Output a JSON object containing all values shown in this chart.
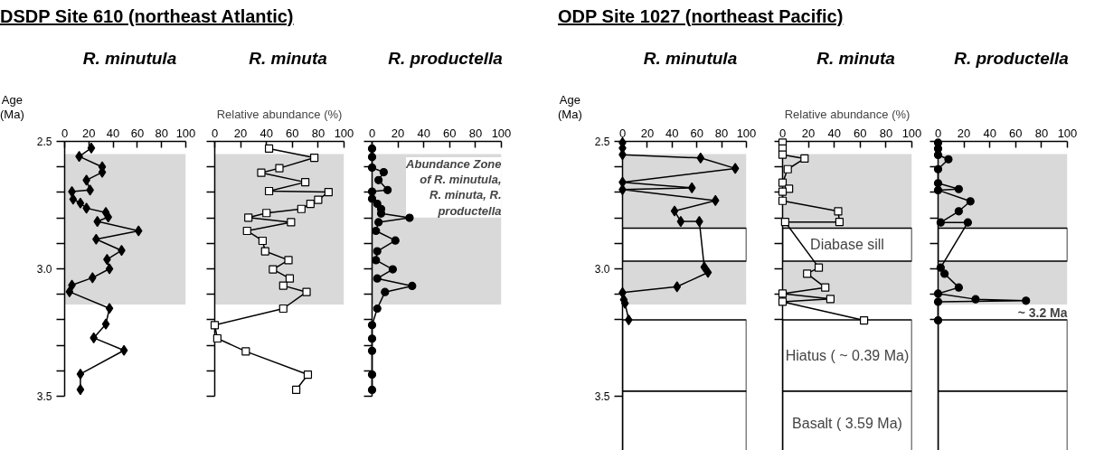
{
  "chart_data": [
    {
      "type": "line",
      "title": "R. minutula",
      "ylabel": "Age (Ma)",
      "annotations": [
        "DSDP Site 610 (northeast Atlantic)"
      ],
      "xlim": [
        0,
        100
      ],
      "xticks": [
        0,
        20,
        40,
        60,
        80,
        100
      ],
      "ylim": [
        3.5,
        2.5
      ],
      "yticks": [
        {
          "value": 2.5,
          "label": "2.5"
        },
        {
          "value": 2.6,
          "label": null
        },
        {
          "value": 2.7,
          "label": null
        },
        {
          "value": 2.8,
          "label": null
        },
        {
          "value": 2.9,
          "label": null
        },
        {
          "value": 3.0,
          "label": "3.0"
        },
        {
          "value": 3.1,
          "label": null
        },
        {
          "value": 3.2,
          "label": null
        },
        {
          "value": 3.3,
          "label": null
        },
        {
          "value": 3.4,
          "label": null
        },
        {
          "value": 3.5,
          "label": "3.5"
        }
      ],
      "marker": "diamond",
      "bands": [
        {
          "axis": "y",
          "from": 2.55,
          "to": 3.14,
          "color": "#d9d9d9"
        }
      ],
      "series": [
        {
          "color": "#000000",
          "x": [
            22,
            12,
            31,
            31,
            18,
            21,
            6,
            7,
            13,
            18,
            34,
            36,
            27,
            61,
            26,
            47,
            35,
            37,
            23,
            6,
            4,
            37,
            34,
            24,
            49,
            13,
            13
          ],
          "values": [
            2.526,
            2.559,
            2.6,
            2.621,
            2.652,
            2.691,
            2.697,
            2.727,
            2.742,
            2.762,
            2.779,
            2.797,
            2.814,
            2.851,
            2.884,
            2.928,
            2.963,
            3.0,
            3.035,
            3.064,
            3.09,
            3.155,
            3.217,
            3.271,
            3.32,
            3.413,
            3.474
          ]
        }
      ]
    },
    {
      "type": "line",
      "title": "R. minuta",
      "xlabel": "Relative abundance (%)",
      "tick_labels": "x",
      "xlim": [
        0,
        100
      ],
      "xticks": [
        0,
        20,
        40,
        60,
        80,
        100
      ],
      "ylim": [
        3.5,
        2.5
      ],
      "yticks": [
        {
          "value": 2.5,
          "label": null
        },
        {
          "value": 2.6,
          "label": null
        },
        {
          "value": 2.7,
          "label": null
        },
        {
          "value": 2.8,
          "label": null
        },
        {
          "value": 2.9,
          "label": null
        },
        {
          "value": 3.0,
          "label": null
        },
        {
          "value": 3.1,
          "label": null
        },
        {
          "value": 3.2,
          "label": null
        },
        {
          "value": 3.3,
          "label": null
        },
        {
          "value": 3.4,
          "label": null
        },
        {
          "value": 3.5,
          "label": null
        }
      ],
      "marker": "square",
      "bands": [
        {
          "axis": "y",
          "from": 2.55,
          "to": 3.14,
          "color": "#d9d9d9"
        }
      ],
      "series": [
        {
          "color": "#000000",
          "x": [
            42,
            77,
            50,
            36,
            70,
            42,
            88,
            80,
            74,
            67,
            40,
            26,
            59,
            25,
            37,
            39,
            57,
            45,
            58,
            53,
            71,
            53,
            0,
            2,
            24,
            72,
            63
          ],
          "values": [
            2.528,
            2.564,
            2.605,
            2.623,
            2.66,
            2.695,
            2.699,
            2.729,
            2.745,
            2.765,
            2.781,
            2.799,
            2.817,
            2.851,
            2.89,
            2.931,
            2.966,
            3.002,
            3.038,
            3.066,
            3.091,
            3.156,
            3.221,
            3.273,
            3.324,
            3.415,
            3.475
          ]
        }
      ]
    },
    {
      "type": "line",
      "title": "R. productella",
      "tick_labels": "x",
      "xlim": [
        0,
        100
      ],
      "xticks": [
        0,
        20,
        40,
        60,
        80,
        100
      ],
      "ylim": [
        3.5,
        2.5
      ],
      "yticks": [
        {
          "value": 2.5,
          "label": null
        },
        {
          "value": 2.6,
          "label": null
        },
        {
          "value": 2.7,
          "label": null
        },
        {
          "value": 2.8,
          "label": null
        },
        {
          "value": 2.9,
          "label": null
        },
        {
          "value": 3.0,
          "label": null
        },
        {
          "value": 3.1,
          "label": null
        },
        {
          "value": 3.2,
          "label": null
        },
        {
          "value": 3.3,
          "label": null
        },
        {
          "value": 3.4,
          "label": null
        },
        {
          "value": 3.5,
          "label": null
        }
      ],
      "marker": "circle",
      "bands": [
        {
          "axis": "y",
          "from": 2.55,
          "to": 3.14,
          "color": "#d9d9d9",
          "label": "Abundance Zone of R. minutula, R. minuta, R. productella"
        }
      ],
      "series": [
        {
          "color": "#000000",
          "x": [
            0,
            0,
            0,
            9,
            5,
            12,
            0,
            0,
            4,
            7,
            7,
            29,
            5,
            3,
            18,
            4,
            3,
            16,
            4,
            31,
            10,
            4,
            0,
            0,
            0,
            0,
            0
          ],
          "values": [
            2.528,
            2.561,
            2.603,
            2.621,
            2.652,
            2.691,
            2.697,
            2.725,
            2.745,
            2.765,
            2.783,
            2.8,
            2.817,
            2.851,
            2.889,
            2.931,
            2.966,
            3.002,
            3.038,
            3.067,
            3.091,
            3.156,
            3.221,
            3.274,
            3.322,
            3.415,
            3.475
          ]
        }
      ]
    },
    {
      "type": "line",
      "title": "R. minutula",
      "ylabel": "Age (Ma)",
      "annotations": [
        "ODP Site 1027 (northeast Pacific)"
      ],
      "xlim": [
        0,
        100
      ],
      "xticks": [
        0,
        20,
        40,
        60,
        80,
        100
      ],
      "ylim": [
        3.73,
        2.5
      ],
      "yticks": [
        {
          "value": 2.5,
          "label": "2.5"
        },
        {
          "value": 2.6,
          "label": null
        },
        {
          "value": 2.7,
          "label": null
        },
        {
          "value": 2.8,
          "label": null
        },
        {
          "value": 2.9,
          "label": null
        },
        {
          "value": 3.0,
          "label": "3.0"
        },
        {
          "value": 3.1,
          "label": null
        },
        {
          "value": 3.2,
          "label": null
        },
        {
          "value": 3.5,
          "label": "3.5"
        }
      ],
      "marker": "diamond",
      "bands": [
        {
          "axis": "y",
          "from": 2.55,
          "to": 3.14,
          "color": "#d9d9d9"
        },
        {
          "axis": "y",
          "from": 2.84,
          "to": 2.97,
          "color": "#ffffff"
        },
        {
          "axis": "y",
          "from": 3.2,
          "to": 3.48,
          "color": "#ffffff"
        },
        {
          "axis": "y",
          "from": 3.48,
          "to": 3.73,
          "color": "#ffffff"
        }
      ],
      "series": [
        {
          "color": "#000000",
          "x": [
            0,
            0,
            0,
            63,
            91,
            0,
            56,
            0,
            75,
            42,
            47,
            62,
            66,
            69,
            44,
            0,
            1,
            2,
            5
          ],
          "values": [
            2.505,
            2.526,
            2.552,
            2.565,
            2.606,
            2.66,
            2.682,
            2.689,
            2.732,
            2.773,
            2.814,
            2.814,
            2.993,
            3.014,
            3.07,
            3.093,
            3.121,
            3.135,
            3.2
          ]
        }
      ]
    },
    {
      "type": "line",
      "title": "R. minuta",
      "xlabel": "Relative abundance (%)",
      "tick_labels": "x",
      "xlim": [
        0,
        100
      ],
      "xticks": [
        0,
        20,
        40,
        60,
        80,
        100
      ],
      "ylim": [
        3.73,
        2.5
      ],
      "yticks": [
        {
          "value": 2.5,
          "label": null
        },
        {
          "value": 2.6,
          "label": null
        },
        {
          "value": 2.7,
          "label": null
        },
        {
          "value": 2.8,
          "label": null
        },
        {
          "value": 2.9,
          "label": null
        },
        {
          "value": 3.0,
          "label": null
        },
        {
          "value": 3.1,
          "label": null
        },
        {
          "value": 3.2,
          "label": null
        }
      ],
      "marker": "square",
      "bands": [
        {
          "axis": "y",
          "from": 2.55,
          "to": 3.14,
          "color": "#d9d9d9"
        },
        {
          "axis": "y",
          "from": 2.84,
          "to": 2.97,
          "color": "#ffffff",
          "label": "Diabase sill"
        },
        {
          "axis": "y",
          "from": 3.2,
          "to": 3.48,
          "color": "#ffffff",
          "label": "Hiatus ( ~ 0.39 Ma)"
        },
        {
          "axis": "y",
          "from": 3.48,
          "to": 3.73,
          "color": "#ffffff",
          "label": "Basalt ( 3.59 Ma)"
        }
      ],
      "series": [
        {
          "color": "#000000",
          "x": [
            0,
            0,
            0,
            17,
            4,
            0,
            5,
            0,
            0,
            43,
            44,
            2,
            28,
            19,
            33,
            0,
            37,
            0,
            63
          ],
          "values": [
            2.505,
            2.528,
            2.552,
            2.567,
            2.609,
            2.662,
            2.686,
            2.697,
            2.733,
            2.774,
            2.816,
            2.816,
            2.995,
            3.019,
            3.073,
            3.097,
            3.118,
            3.129,
            3.202
          ]
        }
      ]
    },
    {
      "type": "line",
      "title": "R. productella",
      "tick_labels": "x",
      "annotations": [
        {
          "text": "~ 3.2 Ma",
          "x": 100,
          "y": 3.2
        }
      ],
      "xlim": [
        0,
        100
      ],
      "xticks": [
        0,
        20,
        40,
        60,
        80,
        100
      ],
      "ylim": [
        3.73,
        2.5
      ],
      "yticks": [
        {
          "value": 2.5,
          "label": null
        },
        {
          "value": 2.6,
          "label": null
        },
        {
          "value": 2.7,
          "label": null
        },
        {
          "value": 2.8,
          "label": null
        },
        {
          "value": 2.9,
          "label": null
        },
        {
          "value": 3.0,
          "label": null
        },
        {
          "value": 3.1,
          "label": null
        },
        {
          "value": 3.2,
          "label": null
        }
      ],
      "marker": "circle",
      "bands": [
        {
          "axis": "y",
          "from": 2.55,
          "to": 3.14,
          "color": "#d9d9d9"
        },
        {
          "axis": "y",
          "from": 2.84,
          "to": 2.97,
          "color": "#ffffff"
        },
        {
          "axis": "y",
          "from": 3.2,
          "to": 3.48,
          "color": "#ffffff"
        },
        {
          "axis": "y",
          "from": 3.48,
          "to": 3.73,
          "color": "#ffffff"
        }
      ],
      "series": [
        {
          "color": "#000000",
          "x": [
            0,
            0,
            0,
            8,
            0,
            0,
            16,
            0,
            25,
            16,
            2,
            23,
            2,
            5,
            16,
            0,
            29,
            68,
            0,
            0
          ],
          "values": [
            2.505,
            2.528,
            2.553,
            2.57,
            2.609,
            2.664,
            2.687,
            2.691,
            2.735,
            2.774,
            2.818,
            2.818,
            2.995,
            3.019,
            3.073,
            3.097,
            3.119,
            3.125,
            3.129,
            3.202
          ]
        }
      ]
    }
  ]
}
